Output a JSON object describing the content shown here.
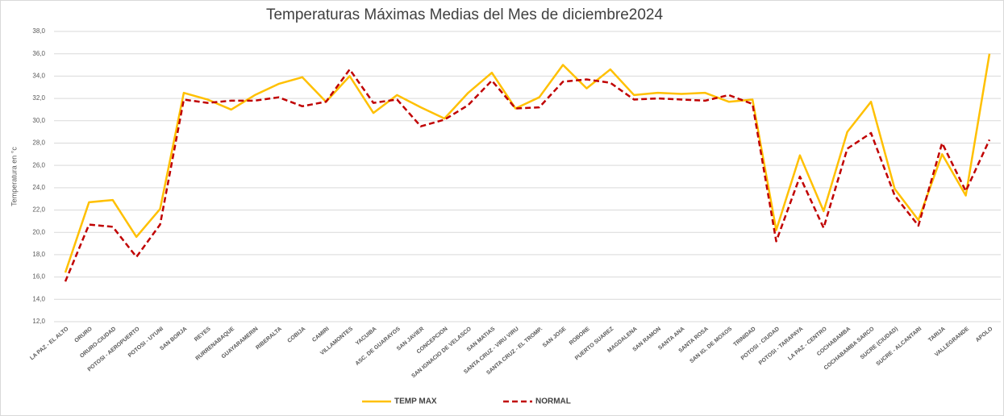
{
  "chart_data": {
    "type": "line",
    "title": "Temperaturas Máximas Medias del Mes de diciembre2024",
    "y_label": "Temperatura en °c",
    "categories": [
      "LA PAZ - EL ALTO",
      "ORURO",
      "ORURO-CIUDAD",
      "POTOSI - AEROPUERTO",
      "POTOSI - UYUNI",
      "SAN BORJA",
      "REYES",
      "RURRENABAQUE",
      "GUAYARAMERIN",
      "RIBERALTA",
      "COBIJA",
      "CAMIRI",
      "VILLAMONTES",
      "YACUIBA",
      "ASC. DE GUARAYOS",
      "SAN JAVIER",
      "CONCEPCION",
      "SAN IGNACIO DE VELASCO",
      "SAN MATIAS",
      "SANTA CRUZ - VIRU VIRU",
      "SANTA CRUZ - EL TROMP.",
      "SAN JOSE",
      "ROBORE",
      "PUERTO SUAREZ",
      "MAGDALENA",
      "SAN RAMON",
      "SANTA ANA",
      "SANTA ROSA",
      "SAN IG. DE MOXOS",
      "TRINIDAD",
      "POTOSI - CIUDAD",
      "POTOSI - TARAPAYA",
      "LA PAZ - CENTRO",
      "COCHABAMBA",
      "COCHABAMBA SARCO",
      "SUCRE (CIUDAD)",
      "SUCRE - ALCANTARI",
      "TARIJA",
      "VALLEGRANDE",
      "APOLO"
    ],
    "series": [
      {
        "name": "TEMP MAX",
        "color": "#ffc000",
        "dashed": false,
        "values": [
          16.4,
          22.7,
          22.9,
          19.6,
          22.1,
          32.5,
          31.9,
          31.0,
          32.3,
          33.3,
          33.9,
          31.7,
          34.0,
          30.7,
          32.3,
          31.2,
          30.2,
          32.5,
          34.3,
          31.1,
          32.1,
          35.0,
          32.9,
          34.6,
          32.3,
          32.5,
          32.4,
          32.5,
          31.7,
          31.9,
          20.2,
          26.9,
          21.9,
          29.0,
          31.7,
          23.9,
          21.1,
          27.0,
          23.3,
          36.0
        ]
      },
      {
        "name": "NORMAL",
        "color": "#c00000",
        "dashed": true,
        "values": [
          15.6,
          20.7,
          20.5,
          17.8,
          20.7,
          31.9,
          31.6,
          31.8,
          31.8,
          32.1,
          31.3,
          31.7,
          34.6,
          31.6,
          31.9,
          29.5,
          30.1,
          31.4,
          33.6,
          31.1,
          31.2,
          33.5,
          33.7,
          33.4,
          31.9,
          32.0,
          31.9,
          31.8,
          32.3,
          31.5,
          19.2,
          25.0,
          20.4,
          27.5,
          28.9,
          23.3,
          20.6,
          28.0,
          23.7,
          28.3
        ]
      }
    ],
    "ylim": [
      12,
      38
    ],
    "yticks": [
      {
        "value": 12,
        "label": "12,0"
      },
      {
        "value": 14,
        "label": "14,0"
      },
      {
        "value": 16,
        "label": "16,0"
      },
      {
        "value": 18,
        "label": "18,0"
      },
      {
        "value": 20,
        "label": "20,0"
      },
      {
        "value": 22,
        "label": "22,0"
      },
      {
        "value": 24,
        "label": "24,0"
      },
      {
        "value": 26,
        "label": "26,0"
      },
      {
        "value": 28,
        "label": "28,0"
      },
      {
        "value": 30,
        "label": "30,0"
      },
      {
        "value": 32,
        "label": "32,0"
      },
      {
        "value": 34,
        "label": "34,0"
      },
      {
        "value": 36,
        "label": "36,0"
      },
      {
        "value": 38,
        "label": "38,0"
      }
    ],
    "grid": true,
    "legend": "bottom"
  }
}
